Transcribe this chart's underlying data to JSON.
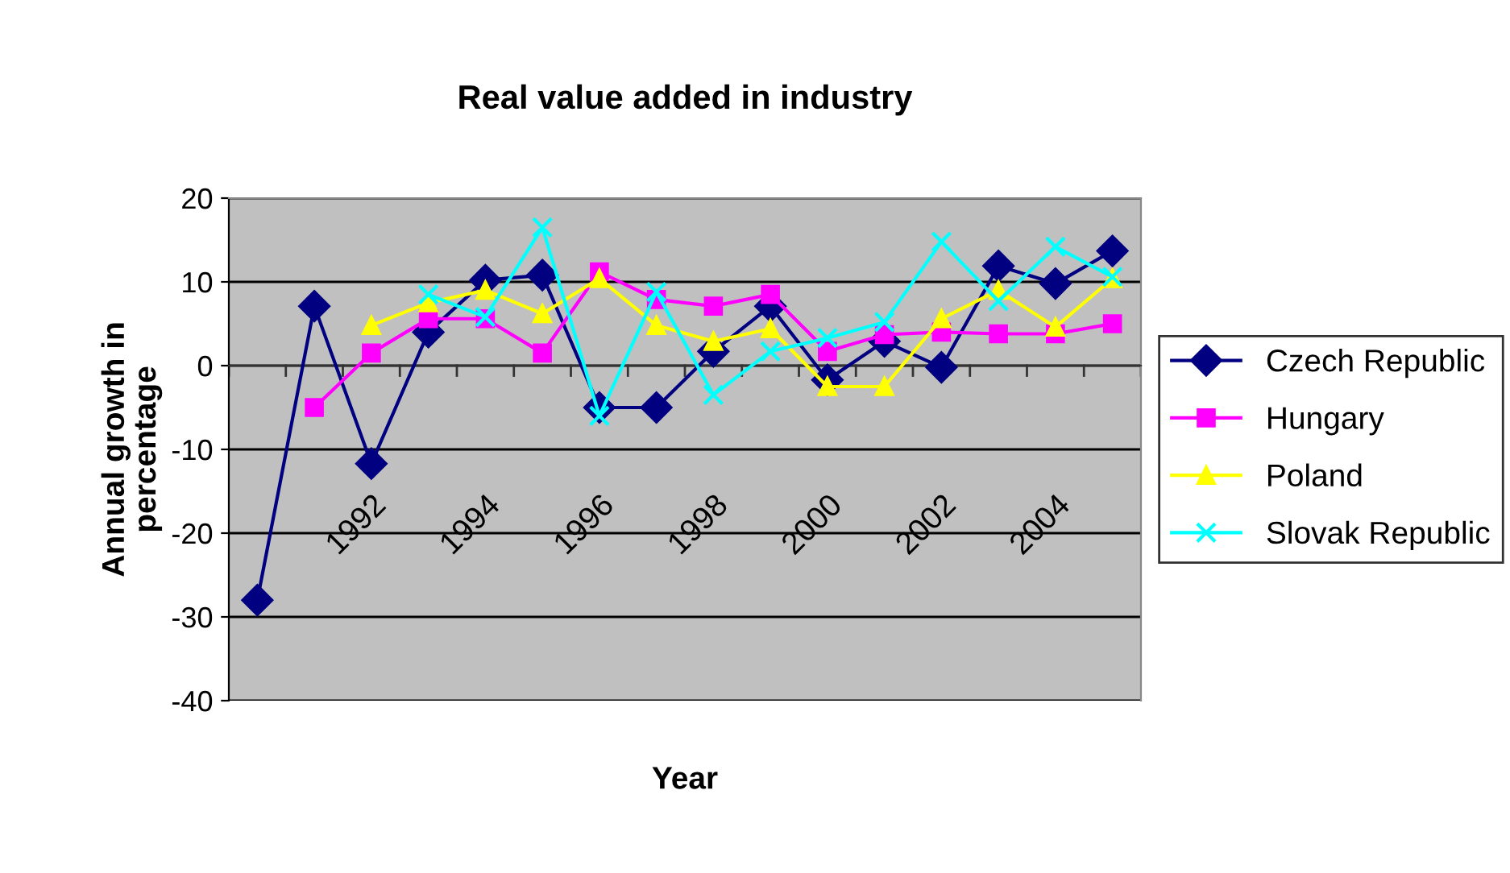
{
  "chart_data": {
    "type": "line",
    "title": "Real value added in industry",
    "xlabel": "Year",
    "ylabel": "Annual growth in\npercentage",
    "categories": [
      null,
      null,
      "1992",
      null,
      "1994",
      null,
      "1996",
      null,
      "1998",
      null,
      "2000",
      null,
      "2002",
      null,
      "2004",
      null
    ],
    "series": [
      {
        "name": "Czech Republic",
        "color": "#000080",
        "marker": "diamond",
        "values": [
          -28,
          7.1,
          -11.7,
          4,
          10.2,
          10.8,
          -5,
          -5,
          1.7,
          7.1,
          -1.7,
          2.9,
          -0.2,
          11.9,
          9.8,
          13.7
        ]
      },
      {
        "name": "Hungary",
        "color": "#ff00ff",
        "marker": "square",
        "values": [
          null,
          -5,
          1.5,
          5.6,
          5.6,
          1.5,
          11.2,
          7.9,
          7.1,
          8.5,
          1.7,
          3.7,
          4,
          3.8,
          3.8,
          5
        ]
      },
      {
        "name": "Poland",
        "color": "#ffff00",
        "marker": "triangle",
        "values": [
          null,
          null,
          4.8,
          7.5,
          9,
          6.2,
          10.4,
          4.8,
          2.9,
          4.4,
          -2.5,
          -2.5,
          5.6,
          9,
          4.6,
          10.4
        ]
      },
      {
        "name": "Slovak Republic",
        "color": "#00ffff",
        "marker": "cross",
        "values": [
          null,
          null,
          null,
          8.5,
          5.8,
          16.5,
          -6,
          8.8,
          -3.5,
          1.7,
          3.3,
          5.2,
          14.8,
          7.7,
          14.2,
          10.6
        ]
      }
    ],
    "ylim": [
      -40,
      20
    ],
    "yticks": [
      -40,
      -30,
      -20,
      -10,
      0,
      10,
      20
    ],
    "grid": "y",
    "legend": "right"
  }
}
